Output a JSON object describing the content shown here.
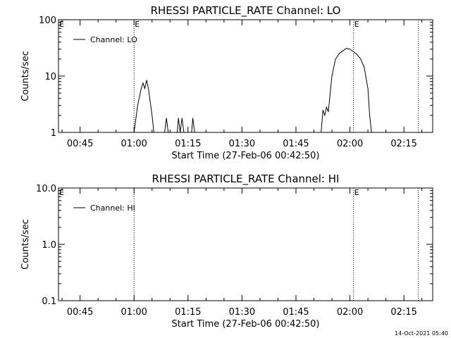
{
  "footer": {
    "timestamp": "14-Oct-2021 05:40"
  },
  "chart_data": [
    {
      "type": "line",
      "title": "RHESSI PARTICLE_RATE Channel: LO",
      "xlabel": "Start Time (27-Feb-06 00:42:50)",
      "ylabel": "Counts/sec",
      "yscale": "log",
      "ylim": [
        1,
        100
      ],
      "xlim": [
        "00:39",
        "02:23"
      ],
      "x_ticks": [
        "00:45",
        "01:00",
        "01:15",
        "01:30",
        "01:45",
        "02:00",
        "02:15"
      ],
      "y_ticks": [
        {
          "value": 1,
          "label": "1"
        },
        {
          "value": 10,
          "label": "10"
        },
        {
          "value": 100,
          "label": "100"
        }
      ],
      "legend": {
        "entries": [
          "Channel: LO"
        ],
        "position": "top-left"
      },
      "markers": [
        {
          "x": "01:00",
          "label": "E"
        },
        {
          "x": "02:01",
          "label": "E"
        },
        {
          "x": "02:19",
          "label": ""
        }
      ],
      "corner_label": "E",
      "series": [
        {
          "name": "Channel: LO",
          "points": [
            [
              "00:39",
              1
            ],
            [
              "01:00",
              1
            ],
            [
              "01:01",
              3
            ],
            [
              "01:02",
              6
            ],
            [
              "01:02:30",
              7.5
            ],
            [
              "01:03",
              6
            ],
            [
              "01:03:30",
              8.5
            ],
            [
              "01:04",
              6
            ],
            [
              "01:05",
              2
            ],
            [
              "01:05:30",
              1
            ],
            [
              "01:08:30",
              1
            ],
            [
              "01:09",
              1.8
            ],
            [
              "01:09:30",
              1
            ],
            [
              "01:12",
              1
            ],
            [
              "01:12:20",
              1.8
            ],
            [
              "01:12:50",
              1
            ],
            [
              "01:13:20",
              1.8
            ],
            [
              "01:13:50",
              1
            ],
            [
              "01:16",
              1
            ],
            [
              "01:16:20",
              1.8
            ],
            [
              "01:16:50",
              1
            ],
            [
              "01:52",
              1
            ],
            [
              "01:52:30",
              2.5
            ],
            [
              "01:53",
              2
            ],
            [
              "01:53:30",
              2.8
            ],
            [
              "01:54",
              2.3
            ],
            [
              "01:55",
              10
            ],
            [
              "01:56",
              20
            ],
            [
              "01:57",
              25
            ],
            [
              "01:58",
              28
            ],
            [
              "01:59",
              31
            ],
            [
              "02:00",
              30
            ],
            [
              "02:01",
              27
            ],
            [
              "02:02",
              24
            ],
            [
              "02:03",
              20
            ],
            [
              "02:04",
              14
            ],
            [
              "02:05",
              6
            ],
            [
              "02:05:30",
              2
            ],
            [
              "02:06",
              1
            ],
            [
              "02:23",
              1
            ]
          ]
        }
      ]
    },
    {
      "type": "line",
      "title": "RHESSI PARTICLE_RATE Channel: HI",
      "xlabel": "Start Time (27-Feb-06 00:42:50)",
      "ylabel": "Counts/sec",
      "yscale": "log",
      "ylim": [
        0.1,
        10
      ],
      "xlim": [
        "00:39",
        "02:23"
      ],
      "x_ticks": [
        "00:45",
        "01:00",
        "01:15",
        "01:30",
        "01:45",
        "02:00",
        "02:15"
      ],
      "y_ticks": [
        {
          "value": 0.1,
          "label": "0.1"
        },
        {
          "value": 1,
          "label": "1.0"
        },
        {
          "value": 10,
          "label": "10.0"
        }
      ],
      "legend": {
        "entries": [
          "Channel: HI"
        ],
        "position": "top-left"
      },
      "markers": [
        {
          "x": "01:00",
          "label": ""
        },
        {
          "x": "02:01",
          "label": "E"
        },
        {
          "x": "02:19",
          "label": ""
        }
      ],
      "corner_label": "E",
      "series": [
        {
          "name": "Channel: HI",
          "points": []
        }
      ]
    }
  ]
}
